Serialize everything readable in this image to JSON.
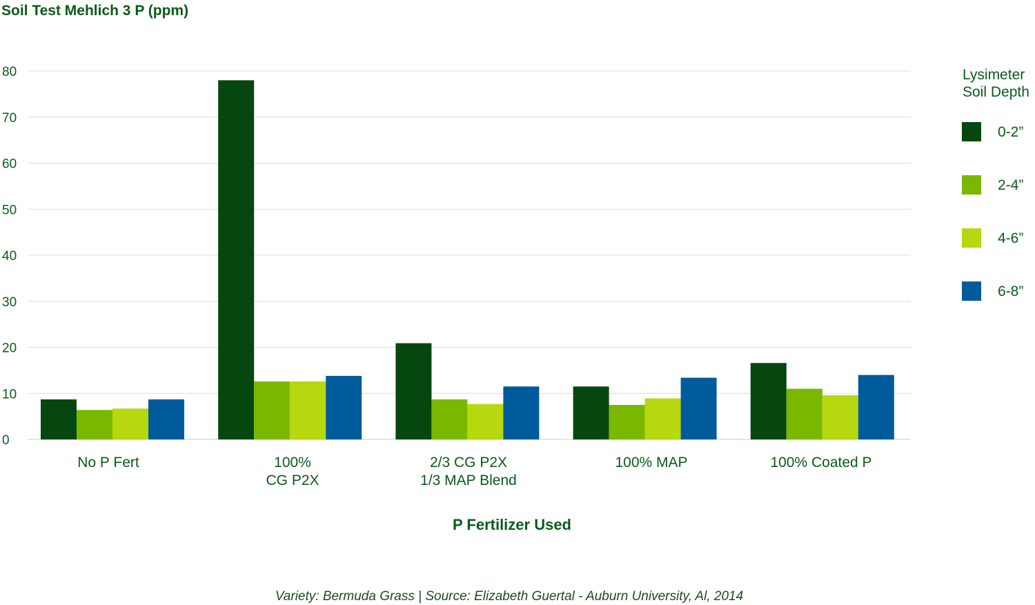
{
  "chart_data": {
    "type": "bar",
    "ylabel": "Soil Test Mehlich 3 P (ppm)",
    "xlabel": "P Fertilizer Used",
    "ylim": [
      0,
      80
    ],
    "yticks": [
      0,
      10,
      20,
      30,
      40,
      50,
      60,
      70,
      80
    ],
    "grid": true,
    "legend_title": [
      "Lysimeter",
      "Soil Depth"
    ],
    "legend_position": "right",
    "categories": [
      [
        "No P Fert"
      ],
      [
        "100%",
        "CG P2X"
      ],
      [
        "2/3 CG P2X",
        "1/3 MAP Blend"
      ],
      [
        "100% MAP"
      ],
      [
        "100% Coated P"
      ]
    ],
    "series": [
      {
        "name": "0-2”",
        "color": "#06470f",
        "values": [
          8.7,
          78.0,
          20.9,
          11.5,
          16.6
        ]
      },
      {
        "name": "2-4”",
        "color": "#7ab800",
        "values": [
          6.4,
          12.6,
          8.7,
          7.5,
          11.0
        ]
      },
      {
        "name": "4-6”",
        "color": "#b7d80e",
        "values": [
          6.7,
          12.6,
          7.7,
          8.9,
          9.6
        ]
      },
      {
        "name": "6-8”",
        "color": "#005b9c",
        "values": [
          8.7,
          13.8,
          11.5,
          13.4,
          14.0
        ]
      }
    ],
    "footnote": "Variety: Bermuda Grass | Source: Elizabeth Guertal - Auburn University, Al, 2014"
  },
  "colors": {
    "title_green": "#0b5a1a",
    "grid": "#dcdcdc",
    "text_dark": "#222222"
  }
}
